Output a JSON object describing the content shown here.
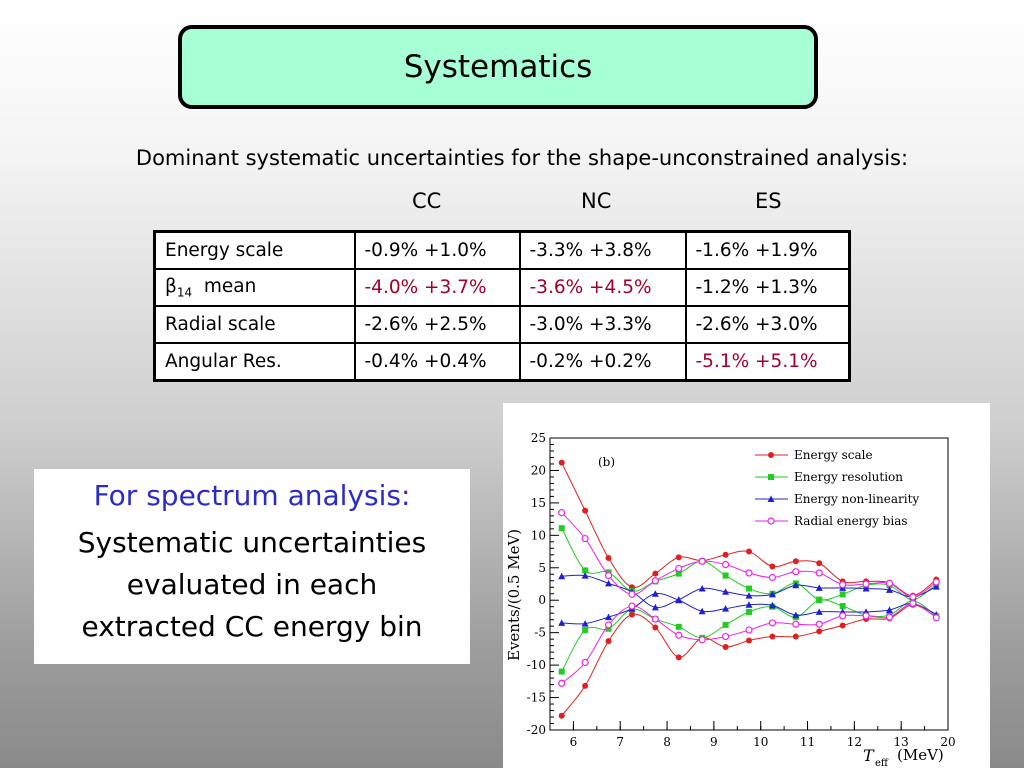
{
  "slide": {
    "title": "Systematics",
    "subtitle": "Dominant systematic uncertainties for the shape-unconstrained analysis:",
    "column_headers": [
      "CC",
      "NC",
      "ES"
    ]
  },
  "table": {
    "rows": [
      {
        "label": "Energy scale",
        "cells": [
          {
            "text": "-0.9%  +1.0%",
            "highlight": false
          },
          {
            "text": "-3.3%  +3.8%",
            "highlight": false
          },
          {
            "text": "-1.6%   +1.9%",
            "highlight": false
          }
        ]
      },
      {
        "label_main": "β",
        "label_sub": "14",
        "label_rest": "  mean",
        "cells": [
          {
            "text": "-4.0%  +3.7%",
            "highlight": true
          },
          {
            "text": "-3.6%  +4.5%",
            "highlight": true
          },
          {
            "text": "-1.2%   +1.3%",
            "highlight": false
          }
        ]
      },
      {
        "label": "Radial scale",
        "cells": [
          {
            "text": "-2.6%  +2.5%",
            "highlight": false
          },
          {
            "text": "-3.0%  +3.3%",
            "highlight": false
          },
          {
            "text": "-2.6%  +3.0%",
            "highlight": false
          }
        ]
      },
      {
        "label": "Angular Res.",
        "cells": [
          {
            "text": "-0.4%  +0.4%",
            "highlight": false
          },
          {
            "text": "-0.2%  +0.2%",
            "highlight": false
          },
          {
            "text": "-5.1%  +5.1%",
            "highlight": true
          }
        ]
      }
    ],
    "highlight_color": "#a0002a"
  },
  "textbox": {
    "heading": "For spectrum analysis:",
    "body_lines": [
      "Systematic uncertainties",
      "evaluated in each",
      "extracted CC energy bin"
    ],
    "heading_color": "#2b2bc8"
  },
  "chart_data": {
    "type": "line",
    "panel_label": "(b)",
    "ylabel": "Events/(0.5 MeV)",
    "xlabel_main": "T",
    "xlabel_sub": "eff",
    "xlabel_unit": "(MeV)",
    "x_ticks": [
      "6",
      "7",
      "8",
      "9",
      "10",
      "11",
      "12",
      "13",
      "20"
    ],
    "y_ticks": [
      25,
      20,
      15,
      10,
      5,
      0,
      -5,
      -10,
      -15,
      -20
    ],
    "ylim": [
      -20,
      25
    ],
    "x": [
      5.75,
      6.25,
      6.75,
      7.25,
      7.75,
      8.25,
      8.75,
      9.25,
      9.75,
      10.25,
      10.75,
      11.25,
      11.75,
      12.25,
      12.75,
      13.25,
      13.75
    ],
    "legend_position": "top-right",
    "series": [
      {
        "name": "Energy scale",
        "color": "#e02020",
        "marker": "circle",
        "pair": [
          [
            21.2,
            13.8,
            6.5,
            2.0,
            4.1,
            6.6,
            6.1,
            7.0,
            7.5,
            5.2,
            6.0,
            5.7,
            2.9,
            2.9,
            2.7,
            0.7,
            3.2
          ],
          [
            -17.8,
            -13.2,
            -6.3,
            -2.2,
            -4.2,
            -8.8,
            -5.8,
            -7.2,
            -6.2,
            -5.6,
            -5.6,
            -4.8,
            -3.9,
            -2.9,
            -2.8,
            -0.7,
            -2.6
          ]
        ]
      },
      {
        "name": "Energy resolution",
        "color": "#22cc22",
        "marker": "square",
        "pair": [
          [
            11.1,
            4.6,
            4.3,
            1.4,
            2.9,
            4.1,
            6.0,
            3.8,
            1.8,
            1.0,
            2.6,
            0.1,
            0.9,
            2.3,
            2.3,
            0.1,
            2.5
          ],
          [
            -11.0,
            -4.6,
            -4.4,
            -1.4,
            -2.9,
            -4.1,
            -5.8,
            -3.8,
            -1.8,
            -1.0,
            -2.6,
            0.0,
            -0.9,
            -2.3,
            -2.3,
            -0.1,
            -2.5
          ]
        ]
      },
      {
        "name": "Energy non-linearity",
        "color": "#2020d0",
        "marker": "triangle",
        "pair": [
          [
            3.7,
            3.8,
            2.6,
            1.3,
            -1.1,
            0.1,
            1.8,
            1.3,
            0.7,
            0.9,
            2.3,
            1.9,
            1.9,
            1.8,
            1.6,
            0.5,
            2.1
          ],
          [
            -3.5,
            -3.6,
            -2.6,
            -1.3,
            1.0,
            0.0,
            -1.7,
            -1.3,
            -0.7,
            -0.8,
            -2.3,
            -1.8,
            -1.8,
            -1.8,
            -1.5,
            -0.5,
            -2.2
          ]
        ]
      },
      {
        "name": "Radial energy bias",
        "color": "#ee22ee",
        "marker": "circle-open",
        "pair": [
          [
            13.5,
            9.5,
            3.8,
            0.9,
            3.0,
            4.9,
            6.0,
            5.5,
            4.2,
            3.5,
            4.4,
            4.2,
            2.4,
            2.5,
            2.6,
            0.5,
            2.8
          ],
          [
            -12.8,
            -9.6,
            -3.8,
            -0.9,
            -2.9,
            -5.4,
            -6.1,
            -5.6,
            -4.6,
            -3.5,
            -3.7,
            -3.7,
            -2.4,
            -2.4,
            -2.6,
            -0.5,
            -2.7
          ]
        ]
      }
    ]
  }
}
